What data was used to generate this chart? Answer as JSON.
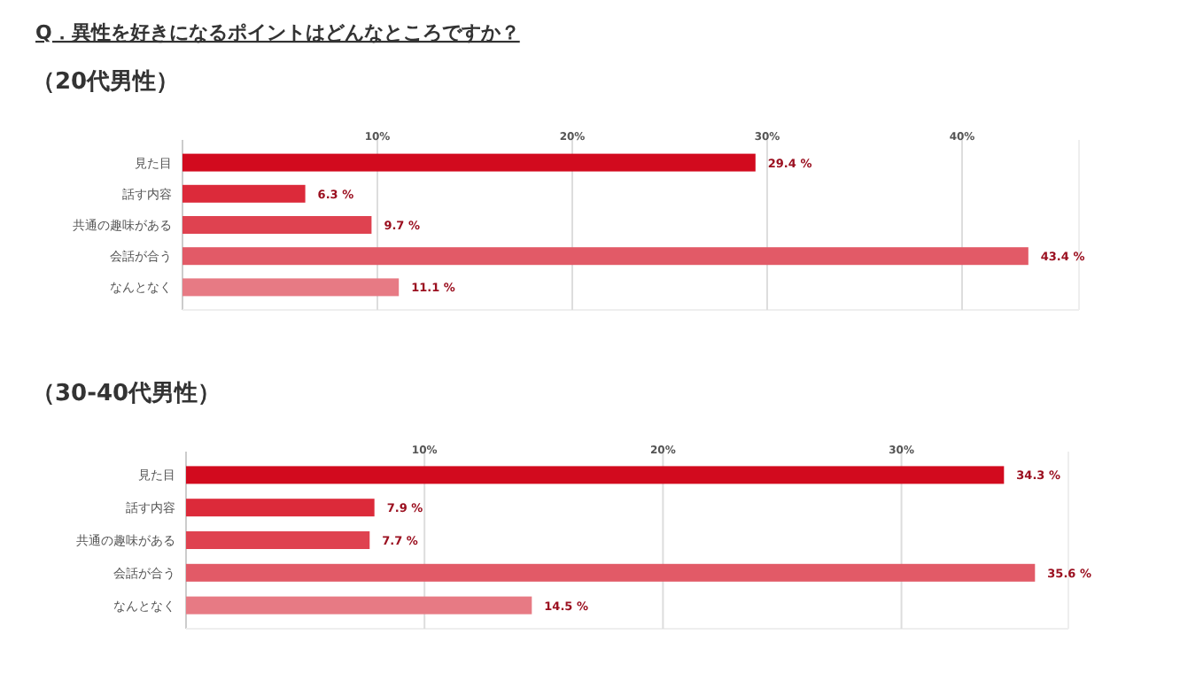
{
  "chart_data": [
    {
      "type": "bar",
      "orientation": "horizontal",
      "title": "Q．異性を好きになるポイントはどんなところですか？",
      "subtitle": "（20代男性）",
      "categories": [
        "見た目",
        "話す内容",
        "共通の趣味がある",
        "会話が合う",
        "なんとなく"
      ],
      "values": [
        29.4,
        6.3,
        9.7,
        43.4,
        11.1
      ],
      "value_labels": [
        "29.4 %",
        "6.3 %",
        "9.7 %",
        "43.4 %",
        "11.1 %"
      ],
      "colors": [
        "#d20a1e",
        "#dc2a3a",
        "#df4250",
        "#e25a67",
        "#e77a84"
      ],
      "xlim": [
        0,
        46
      ],
      "xticks": [
        {
          "value": 10,
          "label": "10%"
        },
        {
          "value": 20,
          "label": "20%"
        },
        {
          "value": 30,
          "label": "30%"
        },
        {
          "value": 40,
          "label": "40%"
        }
      ],
      "grid": "x"
    },
    {
      "type": "bar",
      "orientation": "horizontal",
      "title": "（30-40代男性）",
      "categories": [
        "見た目",
        "話す内容",
        "共通の趣味がある",
        "会話が合う",
        "なんとなく"
      ],
      "values": [
        34.3,
        7.9,
        7.7,
        35.6,
        14.5
      ],
      "value_labels": [
        "34.3 %",
        "7.9 %",
        "7.7 %",
        "35.6 %",
        "14.5 %"
      ],
      "colors": [
        "#d20a1e",
        "#dc2a3a",
        "#df4250",
        "#e25a67",
        "#e77a84"
      ],
      "xlim": [
        0,
        37
      ],
      "xticks": [
        {
          "value": 10,
          "label": "10%"
        },
        {
          "value": 20,
          "label": "20%"
        },
        {
          "value": 30,
          "label": "30%"
        }
      ],
      "grid": "x"
    }
  ]
}
